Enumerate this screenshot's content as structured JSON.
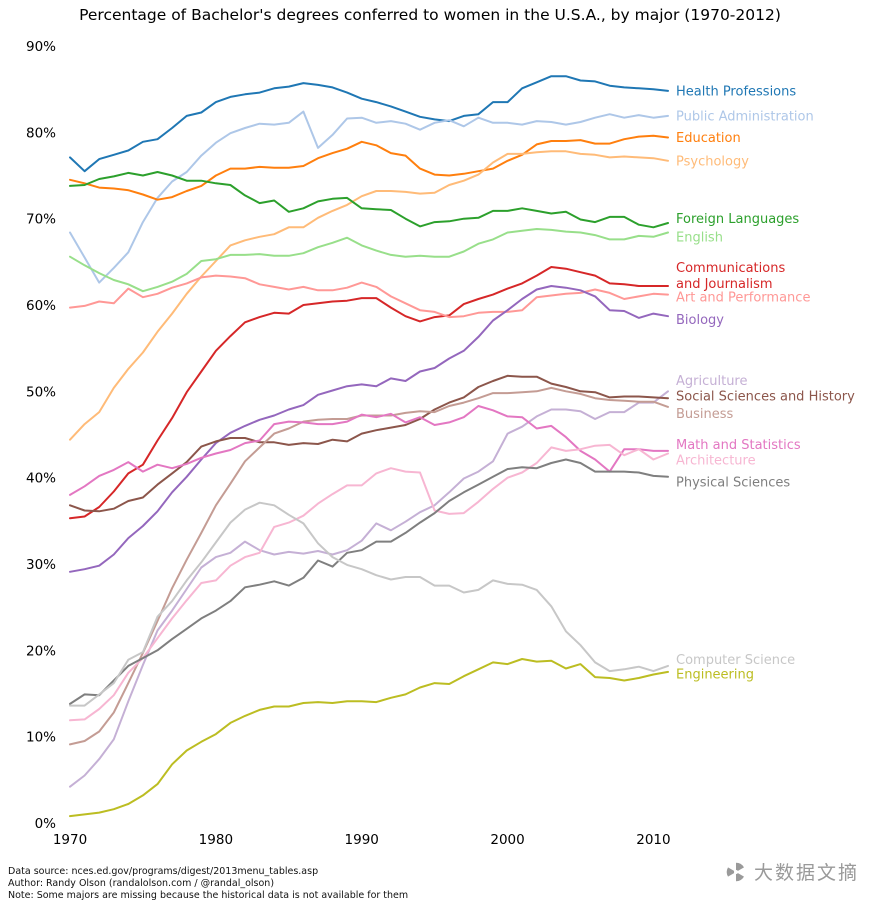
{
  "title": "Percentage of Bachelor's degrees conferred to women in the U.S.A., by major (1970-2012)",
  "footer": {
    "line1": "Data source: nces.ed.gov/programs/digest/2013menu_tables.asp",
    "line2": "Author: Randy Olson (randalolson.com / @randal_olson)",
    "line3": "Note: Some majors are missing because the historical data is not available for them"
  },
  "watermark": {
    "text": "大数据文摘"
  },
  "chart_data": {
    "type": "line",
    "title": "Percentage of Bachelor's degrees conferred to women in the U.S.A., by major (1970-2012)",
    "xlabel": "",
    "ylabel": "",
    "grid": false,
    "legend": "inline labels at right end of each line, colored like the line",
    "ylim": [
      0,
      90
    ],
    "yticks": [
      "0%",
      "10%",
      "20%",
      "30%",
      "40%",
      "50%",
      "60%",
      "70%",
      "80%",
      "90%"
    ],
    "xticks": [
      "1970",
      "1980",
      "1990",
      "2000",
      "2010"
    ],
    "x": [
      1970,
      1971,
      1972,
      1973,
      1974,
      1975,
      1976,
      1977,
      1978,
      1979,
      1980,
      1981,
      1982,
      1983,
      1984,
      1985,
      1986,
      1987,
      1988,
      1989,
      1990,
      1991,
      1992,
      1993,
      1994,
      1995,
      1996,
      1997,
      1998,
      1999,
      2000,
      2001,
      2002,
      2003,
      2004,
      2005,
      2006,
      2007,
      2008,
      2009,
      2010,
      2011
    ],
    "series": [
      {
        "name": "Health Professions",
        "label": "Health Professions",
        "color": "#1f77b4",
        "label_dy": 0,
        "values": [
          77.1,
          75.5,
          76.9,
          77.4,
          77.9,
          78.9,
          79.2,
          80.5,
          81.9,
          82.3,
          83.5,
          84.1,
          84.4,
          84.6,
          85.1,
          85.3,
          85.7,
          85.5,
          85.2,
          84.6,
          83.9,
          83.5,
          83.0,
          82.4,
          81.8,
          81.5,
          81.3,
          81.9,
          82.1,
          83.5,
          83.5,
          85.1,
          85.8,
          86.5,
          86.5,
          86.0,
          85.9,
          85.4,
          85.2,
          85.1,
          85.0,
          84.8
        ]
      },
      {
        "name": "Public Administration",
        "label": "Public Administration",
        "color": "#aec7e8",
        "label_dy": 0,
        "values": [
          68.4,
          65.5,
          62.6,
          64.3,
          66.1,
          69.6,
          72.4,
          74.3,
          75.4,
          77.3,
          78.8,
          79.9,
          80.5,
          81.0,
          80.9,
          81.1,
          82.4,
          78.2,
          79.7,
          81.6,
          81.7,
          81.1,
          81.3,
          81.0,
          80.3,
          81.1,
          81.4,
          80.7,
          81.7,
          81.1,
          81.1,
          80.9,
          81.3,
          81.2,
          80.9,
          81.2,
          81.7,
          82.1,
          81.7,
          82.0,
          81.7,
          81.9
        ]
      },
      {
        "name": "Education",
        "label": "Education",
        "color": "#ff7f0e",
        "label_dy": 0,
        "values": [
          74.5,
          74.1,
          73.6,
          73.5,
          73.3,
          72.8,
          72.2,
          72.5,
          73.2,
          73.8,
          75.0,
          75.8,
          75.8,
          76.0,
          75.9,
          75.9,
          76.1,
          77.0,
          77.6,
          78.1,
          78.9,
          78.5,
          77.6,
          77.3,
          75.8,
          75.1,
          75.0,
          75.2,
          75.5,
          75.8,
          76.7,
          77.4,
          78.6,
          79.0,
          79.0,
          79.1,
          78.7,
          78.7,
          79.2,
          79.5,
          79.6,
          79.4
        ]
      },
      {
        "name": "Psychology",
        "label": "Psychology",
        "color": "#ffbb78",
        "label_dy": 0,
        "values": [
          44.4,
          46.2,
          47.6,
          50.4,
          52.6,
          54.5,
          56.9,
          59.0,
          61.3,
          63.3,
          65.1,
          66.9,
          67.5,
          67.9,
          68.2,
          69.0,
          69.0,
          70.1,
          70.9,
          71.6,
          72.6,
          73.2,
          73.2,
          73.1,
          72.9,
          73.0,
          73.9,
          74.4,
          75.1,
          76.5,
          77.5,
          77.5,
          77.7,
          77.8,
          77.8,
          77.5,
          77.4,
          77.1,
          77.2,
          77.1,
          77.0,
          76.7
        ]
      },
      {
        "name": "Foreign Languages",
        "label": "Foreign Languages",
        "color": "#2ca02c",
        "label_dy": 0.5,
        "values": [
          73.8,
          73.9,
          74.6,
          74.9,
          75.3,
          75.0,
          75.4,
          75.0,
          74.4,
          74.4,
          74.1,
          73.9,
          72.7,
          71.8,
          72.1,
          70.8,
          71.2,
          72.0,
          72.3,
          72.4,
          71.2,
          71.1,
          71.0,
          70.0,
          69.1,
          69.6,
          69.7,
          70.0,
          70.1,
          70.9,
          70.9,
          71.2,
          70.9,
          70.6,
          70.8,
          69.9,
          69.6,
          70.2,
          70.2,
          69.3,
          69.0,
          69.5
        ]
      },
      {
        "name": "English",
        "label": "English",
        "color": "#98df8a",
        "label_dy": -0.5,
        "values": [
          65.6,
          64.6,
          63.7,
          62.9,
          62.4,
          61.6,
          62.1,
          62.7,
          63.6,
          65.1,
          65.3,
          65.8,
          65.8,
          65.9,
          65.7,
          65.7,
          66.0,
          66.7,
          67.2,
          67.8,
          66.9,
          66.3,
          65.8,
          65.6,
          65.7,
          65.6,
          65.6,
          66.2,
          67.1,
          67.6,
          68.4,
          68.6,
          68.8,
          68.7,
          68.5,
          68.4,
          68.1,
          67.6,
          67.6,
          68.0,
          67.9,
          68.4
        ]
      },
      {
        "name": "Communications and Journalism",
        "label": "Communications\nand Journalism",
        "color": "#d62728",
        "label_dy": 1.2,
        "values": [
          35.3,
          35.5,
          36.6,
          38.4,
          40.5,
          41.5,
          44.3,
          46.9,
          49.9,
          52.3,
          54.7,
          56.4,
          58.0,
          58.6,
          59.1,
          59.0,
          60.0,
          60.2,
          60.4,
          60.5,
          60.8,
          60.8,
          59.7,
          58.7,
          58.1,
          58.6,
          58.8,
          60.1,
          60.7,
          61.2,
          61.9,
          62.5,
          63.4,
          64.4,
          64.2,
          63.8,
          63.4,
          62.5,
          62.4,
          62.2,
          62.2,
          62.2
        ]
      },
      {
        "name": "Art and Performance",
        "label": "Art and Performance",
        "color": "#ff9896",
        "label_dy": -0.25,
        "values": [
          59.7,
          59.9,
          60.4,
          60.2,
          61.9,
          60.9,
          61.3,
          62.0,
          62.5,
          63.2,
          63.4,
          63.3,
          63.1,
          62.4,
          62.1,
          61.8,
          62.1,
          61.7,
          61.7,
          62.0,
          62.6,
          62.1,
          61.0,
          60.2,
          59.4,
          59.2,
          58.6,
          58.7,
          59.1,
          59.2,
          59.2,
          59.4,
          60.9,
          61.1,
          61.3,
          61.4,
          61.8,
          61.4,
          60.7,
          61.0,
          61.3,
          61.2
        ]
      },
      {
        "name": "Biology",
        "label": "Biology",
        "color": "#9467bd",
        "label_dy": -0.4,
        "values": [
          29.1,
          29.4,
          29.8,
          31.1,
          33.0,
          34.4,
          36.1,
          38.3,
          40.1,
          42.1,
          44.0,
          45.2,
          46.0,
          46.7,
          47.2,
          47.9,
          48.4,
          49.6,
          50.1,
          50.6,
          50.8,
          50.6,
          51.5,
          51.2,
          52.3,
          52.7,
          53.8,
          54.7,
          56.3,
          58.2,
          59.4,
          60.7,
          61.8,
          62.2,
          62.0,
          61.7,
          61.0,
          59.4,
          59.3,
          58.5,
          59.0,
          58.7
        ]
      },
      {
        "name": "Agriculture",
        "label": "Agriculture",
        "color": "#c5b0d5",
        "label_dy": 1.25,
        "values": [
          4.2,
          5.5,
          7.4,
          9.7,
          14.1,
          18.3,
          22.3,
          24.6,
          27.1,
          29.6,
          30.8,
          31.3,
          32.6,
          31.6,
          31.1,
          31.4,
          31.2,
          31.5,
          31.1,
          31.6,
          32.7,
          34.7,
          33.9,
          34.9,
          36.0,
          36.8,
          38.3,
          39.9,
          40.7,
          41.9,
          45.1,
          45.9,
          47.1,
          47.9,
          47.9,
          47.7,
          46.8,
          47.6,
          47.6,
          48.7,
          48.7,
          50.0
        ]
      },
      {
        "name": "Social Sciences and History",
        "label": "Social Sciences and History",
        "color": "#8c564b",
        "label_dy": 0.25,
        "values": [
          36.8,
          36.2,
          36.1,
          36.4,
          37.3,
          37.7,
          39.2,
          40.5,
          41.8,
          43.6,
          44.2,
          44.6,
          44.6,
          44.1,
          44.1,
          43.8,
          44.0,
          43.9,
          44.4,
          44.2,
          45.1,
          45.5,
          45.8,
          46.1,
          46.8,
          47.9,
          48.7,
          49.3,
          50.5,
          51.2,
          51.8,
          51.7,
          51.7,
          50.9,
          50.5,
          50.0,
          49.9,
          49.3,
          49.4,
          49.4,
          49.3,
          49.2
        ]
      },
      {
        "name": "Business",
        "label": "Business",
        "color": "#c49c94",
        "label_dy": -0.75,
        "values": [
          9.1,
          9.5,
          10.6,
          12.8,
          16.2,
          19.7,
          23.4,
          27.2,
          30.5,
          33.6,
          36.8,
          39.3,
          41.9,
          43.5,
          45.1,
          45.7,
          46.5,
          46.7,
          46.8,
          46.8,
          47.2,
          47.2,
          47.2,
          47.5,
          47.7,
          47.6,
          48.3,
          48.7,
          49.2,
          49.8,
          49.8,
          49.9,
          50.0,
          50.4,
          50.0,
          49.7,
          49.2,
          49.0,
          48.9,
          48.8,
          48.8,
          48.2
        ]
      },
      {
        "name": "Math and Statistics",
        "label": "Math and Statistics",
        "color": "#e377c2",
        "label_dy": 0.75,
        "values": [
          38.0,
          39.0,
          40.2,
          40.9,
          41.8,
          40.7,
          41.5,
          41.1,
          41.6,
          42.3,
          42.8,
          43.2,
          44.0,
          44.3,
          46.2,
          46.5,
          46.4,
          46.2,
          46.2,
          46.5,
          47.3,
          47.0,
          47.4,
          46.4,
          47.0,
          46.1,
          46.4,
          47.0,
          48.3,
          47.8,
          47.1,
          47.0,
          45.7,
          46.0,
          44.7,
          43.1,
          42.1,
          40.7,
          43.3,
          43.3,
          43.1,
          43.1
        ]
      },
      {
        "name": "Architecture",
        "label": "Architecture",
        "color": "#f7b6d2",
        "label_dy": -0.75,
        "values": [
          11.9,
          12.0,
          13.2,
          14.8,
          17.4,
          19.1,
          21.4,
          23.7,
          25.8,
          27.8,
          28.1,
          29.8,
          30.8,
          31.3,
          34.3,
          34.8,
          35.6,
          37.0,
          38.1,
          39.1,
          39.1,
          40.5,
          41.1,
          40.7,
          40.6,
          36.2,
          35.8,
          35.9,
          37.2,
          38.7,
          40.0,
          40.6,
          41.7,
          43.5,
          43.1,
          43.3,
          43.7,
          43.8,
          42.6,
          43.3,
          42.1,
          42.8
        ]
      },
      {
        "name": "Physical Sciences",
        "label": "Physical Sciences",
        "color": "#7f7f7f",
        "label_dy": -0.6,
        "values": [
          13.8,
          14.9,
          14.8,
          16.5,
          18.2,
          19.1,
          20.0,
          21.3,
          22.5,
          23.7,
          24.6,
          25.7,
          27.3,
          27.6,
          28.0,
          27.5,
          28.4,
          30.4,
          29.7,
          31.3,
          31.6,
          32.6,
          32.6,
          33.6,
          34.8,
          35.9,
          37.3,
          38.3,
          39.2,
          40.1,
          41.0,
          41.2,
          41.1,
          41.7,
          42.1,
          41.7,
          40.7,
          40.7,
          40.7,
          40.6,
          40.2,
          40.1
        ]
      },
      {
        "name": "Computer Science",
        "label": "Computer Science",
        "color": "#c7c7c7",
        "label_dy": 0.75,
        "values": [
          13.6,
          13.6,
          14.9,
          16.2,
          18.9,
          19.8,
          23.9,
          25.7,
          28.1,
          30.2,
          32.5,
          34.8,
          36.3,
          37.1,
          36.8,
          35.7,
          34.7,
          32.4,
          30.8,
          29.9,
          29.4,
          28.7,
          28.2,
          28.5,
          28.5,
          27.5,
          27.5,
          26.7,
          27.0,
          28.1,
          27.7,
          27.6,
          27.0,
          25.1,
          22.2,
          20.6,
          18.6,
          17.6,
          17.8,
          18.1,
          17.6,
          18.2
        ]
      },
      {
        "name": "Engineering",
        "label": "Engineering",
        "color": "#bcbd22",
        "label_dy": -0.25,
        "values": [
          0.8,
          1.0,
          1.2,
          1.6,
          2.2,
          3.2,
          4.5,
          6.8,
          8.4,
          9.4,
          10.3,
          11.6,
          12.4,
          13.1,
          13.5,
          13.5,
          13.9,
          14.0,
          13.9,
          14.1,
          14.1,
          14.0,
          14.5,
          14.9,
          15.7,
          16.2,
          16.1,
          17.0,
          17.8,
          18.6,
          18.4,
          19.0,
          18.7,
          18.8,
          17.9,
          18.4,
          16.9,
          16.8,
          16.5,
          16.8,
          17.2,
          17.5
        ]
      }
    ]
  }
}
